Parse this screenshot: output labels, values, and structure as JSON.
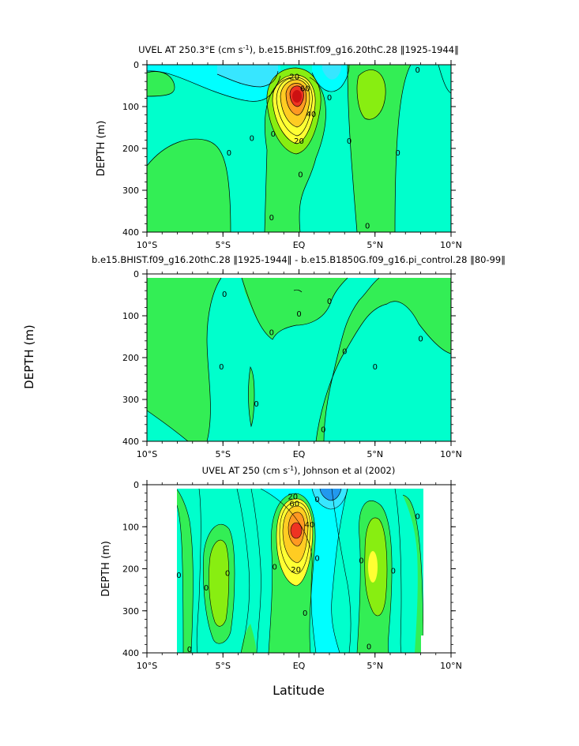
{
  "figure": {
    "xlabel_global": "Latitude",
    "ylabel_global": "DEPTH (m)"
  },
  "colors": {
    "cyan_dark": "#37e6ff",
    "cyan": "#00ffff",
    "aqua": "#00ffcc",
    "green": "#33ee55",
    "green2": "#44dd22",
    "lime": "#88ee11",
    "yellow": "#ffff33",
    "gold": "#ffcc22",
    "orange": "#ff9922",
    "red": "#ee3322",
    "darkred": "#cc1111"
  },
  "chart_data": [
    {
      "type": "heatmap",
      "title_main": "UVEL AT 250.3°E (cm s",
      "title_sup": "-1",
      "title_rest": "), b.e15.BHIST.f09_g16.20thC.28 ‖1925-1944‖",
      "ylabel": "DEPTH (m)",
      "xlim": [
        -10,
        10
      ],
      "ylim": [
        400,
        0
      ],
      "x_ticks": [
        "10°S",
        "5°S",
        "EQ",
        "5°N",
        "10°N"
      ],
      "y_ticks": [
        "0",
        "100",
        "200",
        "300",
        "400"
      ],
      "contour_labels": [
        {
          "text": "20",
          "x": -0.3,
          "y": 28
        },
        {
          "text": "60",
          "x": 0.4,
          "y": 57
        },
        {
          "text": "40",
          "x": 0.8,
          "y": 118
        },
        {
          "text": "20",
          "x": 0,
          "y": 182
        },
        {
          "text": "0",
          "x": -3.1,
          "y": 175
        },
        {
          "text": "0",
          "x": -4.6,
          "y": 210
        },
        {
          "text": "0",
          "x": -1.7,
          "y": 165
        },
        {
          "text": "0",
          "x": 2.0,
          "y": 78
        },
        {
          "text": "0",
          "x": 0.1,
          "y": 262
        },
        {
          "text": "0",
          "x": -1.8,
          "y": 365
        },
        {
          "text": "0",
          "x": 3.3,
          "y": 182
        },
        {
          "text": "0",
          "x": 7.8,
          "y": 12
        },
        {
          "text": "0",
          "x": 6.5,
          "y": 210
        },
        {
          "text": "0",
          "x": 4.5,
          "y": 385
        }
      ]
    },
    {
      "type": "heatmap",
      "title_main": "b.e15.BHIST.f09_g16.20thC.28 ‖1925-1944‖ - b.e15.B1850G.f09_g16.pi_control.28 ‖80-99‖",
      "xlim": [
        -10,
        10
      ],
      "ylim": [
        400,
        0
      ],
      "x_ticks": [
        "10°S",
        "5°S",
        "EQ",
        "5°N",
        "10°N"
      ],
      "y_ticks": [
        "0",
        "100",
        "200",
        "300",
        "400"
      ],
      "contour_labels": [
        {
          "text": "0",
          "x": -4.9,
          "y": 48
        },
        {
          "text": "0",
          "x": -5.1,
          "y": 222
        },
        {
          "text": "0",
          "x": -2.8,
          "y": 310
        },
        {
          "text": "0",
          "x": -1.8,
          "y": 140
        },
        {
          "text": "0",
          "x": 0,
          "y": 95
        },
        {
          "text": "0",
          "x": 2.0,
          "y": 65
        },
        {
          "text": "0",
          "x": 3.0,
          "y": 185
        },
        {
          "text": "0",
          "x": 5.0,
          "y": 222
        },
        {
          "text": "0",
          "x": 8.0,
          "y": 155
        },
        {
          "text": "0",
          "x": 1.6,
          "y": 372
        }
      ]
    },
    {
      "type": "heatmap",
      "title_main": "UVEL AT 250 (cm s",
      "title_sup": "-1",
      "title_rest": "), Johnson et al (2002)",
      "ylabel": "DEPTH (m)",
      "xlabel": "Latitude",
      "xlim": [
        -10,
        10
      ],
      "ylim": [
        400,
        0
      ],
      "x_ticks": [
        "10°S",
        "5°S",
        "EQ",
        "5°N",
        "10°N"
      ],
      "y_ticks": [
        "0",
        "100",
        "200",
        "300",
        "400"
      ],
      "contour_labels": [
        {
          "text": "20",
          "x": -0.4,
          "y": 28
        },
        {
          "text": "60",
          "x": -0.3,
          "y": 45
        },
        {
          "text": "40",
          "x": 0.7,
          "y": 95
        },
        {
          "text": "20",
          "x": -0.2,
          "y": 202
        },
        {
          "text": "0",
          "x": -7.9,
          "y": 215
        },
        {
          "text": "0",
          "x": -6.1,
          "y": 245
        },
        {
          "text": "0",
          "x": -4.7,
          "y": 210
        },
        {
          "text": "0",
          "x": -1.6,
          "y": 195
        },
        {
          "text": "0",
          "x": 1.2,
          "y": 35
        },
        {
          "text": "0",
          "x": 1.2,
          "y": 175
        },
        {
          "text": "0",
          "x": 0.4,
          "y": 305
        },
        {
          "text": "0",
          "x": 4.1,
          "y": 180
        },
        {
          "text": "0",
          "x": 6.2,
          "y": 205
        },
        {
          "text": "0",
          "x": 7.8,
          "y": 75
        },
        {
          "text": "0",
          "x": 4.6,
          "y": 385
        },
        {
          "text": "0",
          "x": -7.2,
          "y": 392
        }
      ]
    }
  ]
}
